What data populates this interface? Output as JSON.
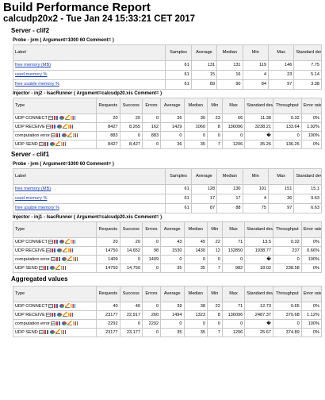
{
  "title": "Build Performance Report",
  "subtitle": "calcudp20x2 - Tue Jan 24 15:33:21 CET 2017",
  "probe_headers": [
    "Label",
    "Samples",
    "Average",
    "Median",
    "Min",
    "Max",
    "Standard deviation"
  ],
  "injector_headers": [
    "Type",
    "Requests",
    "Success",
    "Errors",
    "Average",
    "Median",
    "Min",
    "Max",
    "Standard deviation",
    "Throughput",
    "Error rate"
  ],
  "servers": [
    {
      "title": "Server - clif2",
      "probe_title": "Probe - jvm ( Argument=1000 60 Comment= )",
      "probe_rows": [
        {
          "label": "free memory (MB)",
          "samples": "61",
          "average": "131",
          "median": "131",
          "min": "119",
          "max": "146",
          "stddev": "7.75"
        },
        {
          "label": "used memory %",
          "samples": "61",
          "average": "15",
          "median": "16",
          "min": "4",
          "max": "23",
          "stddev": "5.14"
        },
        {
          "label": "free usable memory %",
          "samples": "61",
          "average": "89",
          "median": "90",
          "min": "84",
          "max": "97",
          "stddev": "3.38"
        }
      ],
      "injector_title": "Injector - inj2 - IsacRunner ( Argument=calcudp20.xis Comment= )",
      "injector_rows": [
        {
          "type": "UDP CONNECT",
          "requests": "20",
          "success": "20",
          "errors": "0",
          "average": "36",
          "median": "36",
          "min": "23",
          "max": "66",
          "stddev": "11.38",
          "throughput": "0.32",
          "error_rate": "0%"
        },
        {
          "type": "UDP RECEIVE",
          "requests": "8427",
          "success": "8,265",
          "errors": "162",
          "average": "1429",
          "median": "1060",
          "min": "8",
          "max": "136096",
          "stddev": "3238.21",
          "throughput": "133.64",
          "error_rate": "1.92%"
        },
        {
          "type": "computation error",
          "requests": "883",
          "success": "0",
          "errors": "883",
          "average": "0",
          "median": "0",
          "min": "0",
          "max": "0",
          "stddev": "�",
          "throughput": "0",
          "error_rate": "100%"
        },
        {
          "type": "UDP SEND",
          "requests": "8427",
          "success": "8,427",
          "errors": "0",
          "average": "36",
          "median": "35",
          "min": "7",
          "max": "1206",
          "stddev": "35.26",
          "throughput": "136.26",
          "error_rate": "0%"
        }
      ]
    },
    {
      "title": "Server - clif1",
      "probe_title": "Probe - jvm ( Argument=1000 60 Comment= )",
      "probe_rows": [
        {
          "label": "free memory (MB)",
          "samples": "61",
          "average": "128",
          "median": "130",
          "min": "101",
          "max": "151",
          "stddev": "15.1"
        },
        {
          "label": "used memory %",
          "samples": "61",
          "average": "17",
          "median": "17",
          "min": "4",
          "max": "36",
          "stddev": "9.63"
        },
        {
          "label": "free usable memory %",
          "samples": "61",
          "average": "87",
          "median": "88",
          "min": "75",
          "max": "97",
          "stddev": "6.63"
        }
      ],
      "injector_title": "Injector - inj1 - IsacRunner ( Argument=calcudp20.xis Comment= )",
      "injector_rows": [
        {
          "type": "UDP CONNECT",
          "requests": "20",
          "success": "20",
          "errors": "0",
          "average": "43",
          "median": "45",
          "min": "22",
          "max": "71",
          "stddev": "13.5",
          "throughput": "0.32",
          "error_rate": "0%"
        },
        {
          "type": "UDP RECEIVE",
          "requests": "14750",
          "success": "14,652",
          "errors": "98",
          "average": "1530",
          "median": "1430",
          "min": "12",
          "max": "132850",
          "stddev": "1938.77",
          "throughput": "237",
          "error_rate": "0.66%"
        },
        {
          "type": "computation error",
          "requests": "1409",
          "success": "0",
          "errors": "1409",
          "average": "0",
          "median": "0",
          "min": "0",
          "max": "0",
          "stddev": "�",
          "throughput": "0",
          "error_rate": "100%"
        },
        {
          "type": "UDP SEND",
          "requests": "14750",
          "success": "14,750",
          "errors": "0",
          "average": "35",
          "median": "35",
          "min": "7",
          "max": "982",
          "stddev": "18.02",
          "throughput": "238.58",
          "error_rate": "0%"
        }
      ]
    }
  ],
  "aggregated": {
    "title": "Aggregated values",
    "rows": [
      {
        "type": "UDP CONNECT",
        "requests": "40",
        "success": "40",
        "errors": "0",
        "average": "39",
        "median": "38",
        "min": "22",
        "max": "71",
        "stddev": "12.73",
        "throughput": "0.65",
        "error_rate": "0%"
      },
      {
        "type": "UDP RECEIVE",
        "requests": "23177",
        "success": "22,917",
        "errors": "260",
        "average": "1494",
        "median": "1323",
        "min": "8",
        "max": "136096",
        "stddev": "2487.37",
        "throughput": "370.68",
        "error_rate": "1.12%"
      },
      {
        "type": "computation error",
        "requests": "2292",
        "success": "0",
        "errors": "2292",
        "average": "0",
        "median": "0",
        "min": "0",
        "max": "0",
        "stddev": "�",
        "throughput": "0",
        "error_rate": "100%"
      },
      {
        "type": "UDP SEND",
        "requests": "23177",
        "success": "23,177",
        "errors": "0",
        "average": "35",
        "median": "35",
        "min": "7",
        "max": "1206",
        "stddev": "25.67",
        "throughput": "374.89",
        "error_rate": "0%"
      }
    ]
  },
  "icon_names": [
    "table-icon",
    "bar-chart-icon",
    "pie-chart-icon",
    "line-chart-icon",
    "column-chart-icon"
  ]
}
